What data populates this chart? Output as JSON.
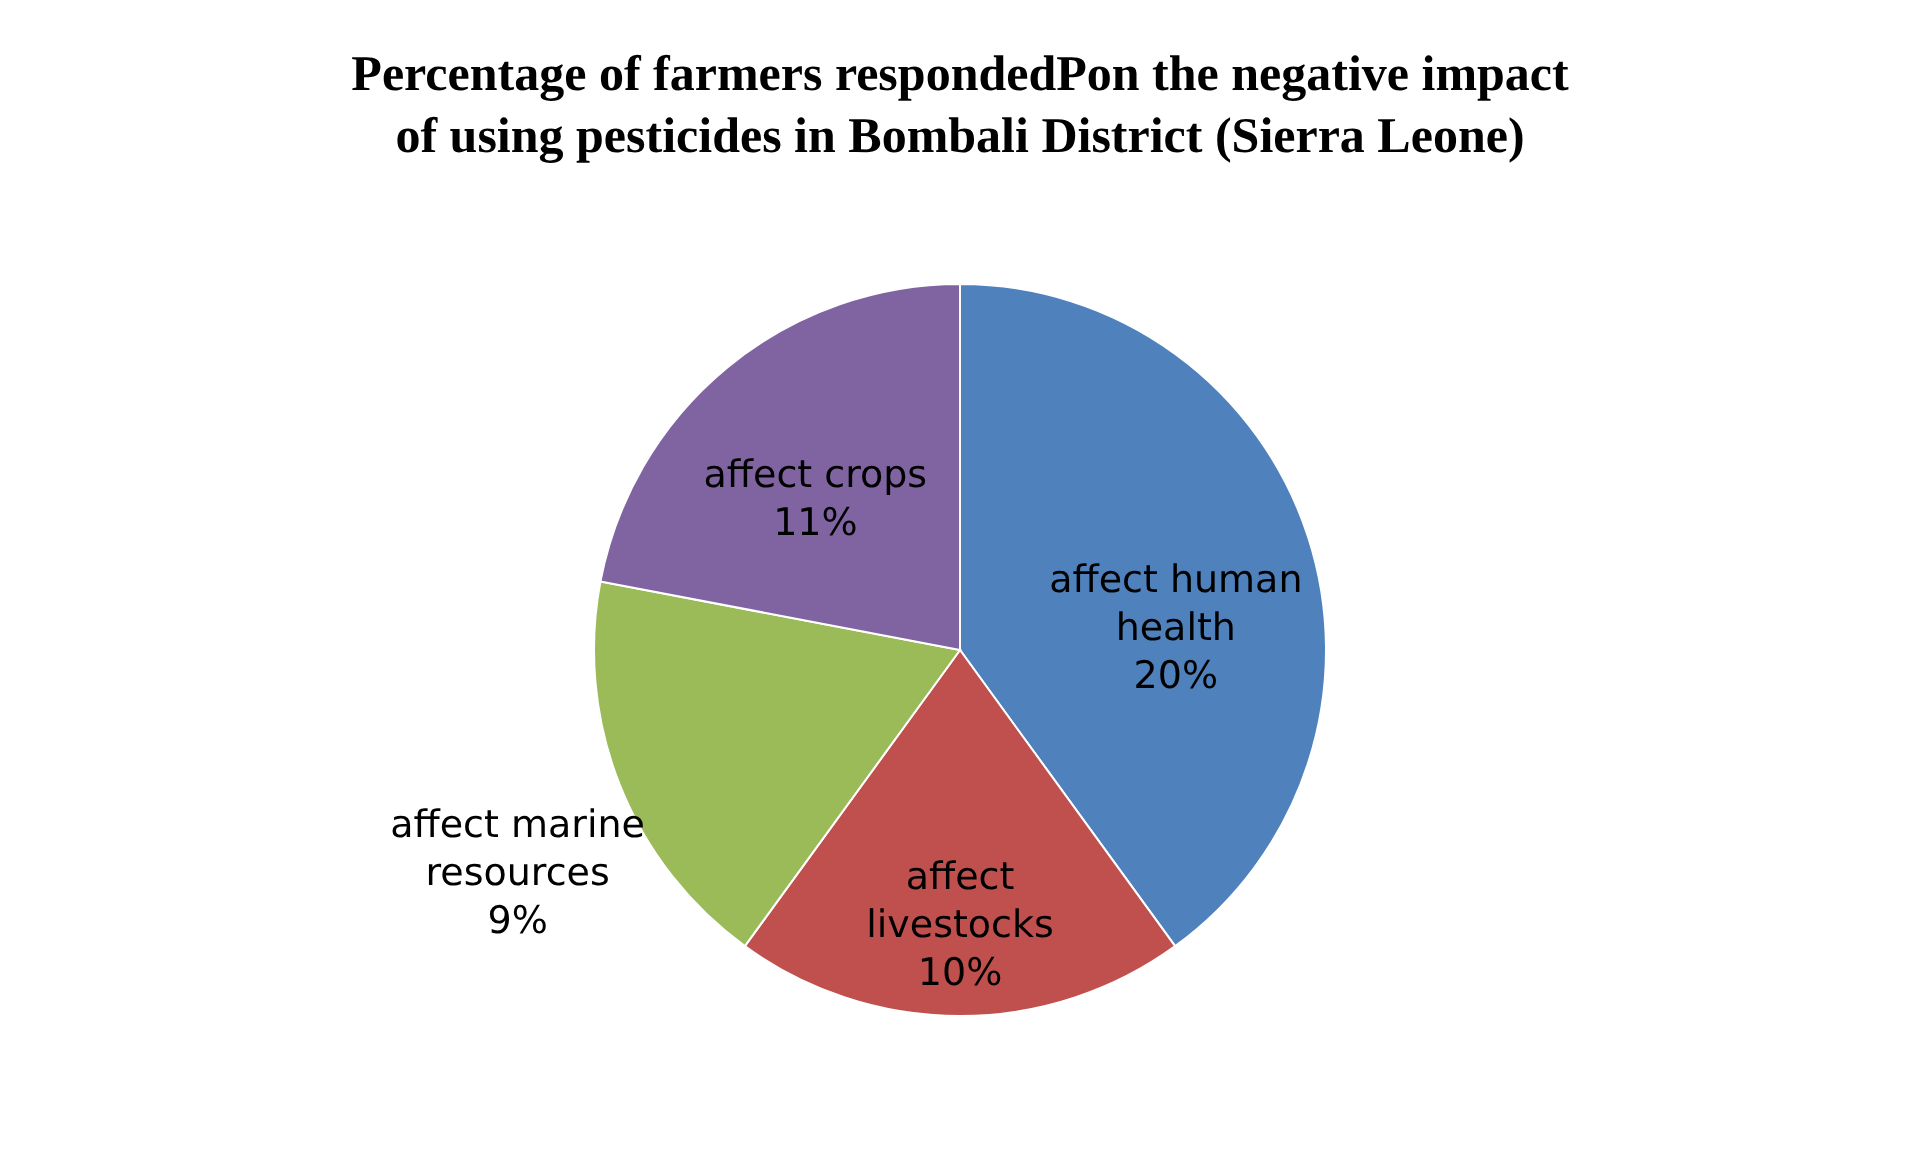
{
  "chart_data": {
    "type": "pie",
    "title": "Percentage of farmers respondedPon the  negative impact of using pesticides in Bombali District (Sierra Leone)",
    "categories": [
      "affect human health",
      "affect livestocks",
      "affect marine resources",
      "affect crops"
    ],
    "values": [
      20,
      10,
      9,
      11
    ],
    "value_labels": [
      "20%",
      "10%",
      "9%",
      "11%"
    ],
    "colors": [
      "#4f81bd",
      "#c0504d",
      "#9bbb59",
      "#8064a2"
    ],
    "legend": false
  }
}
